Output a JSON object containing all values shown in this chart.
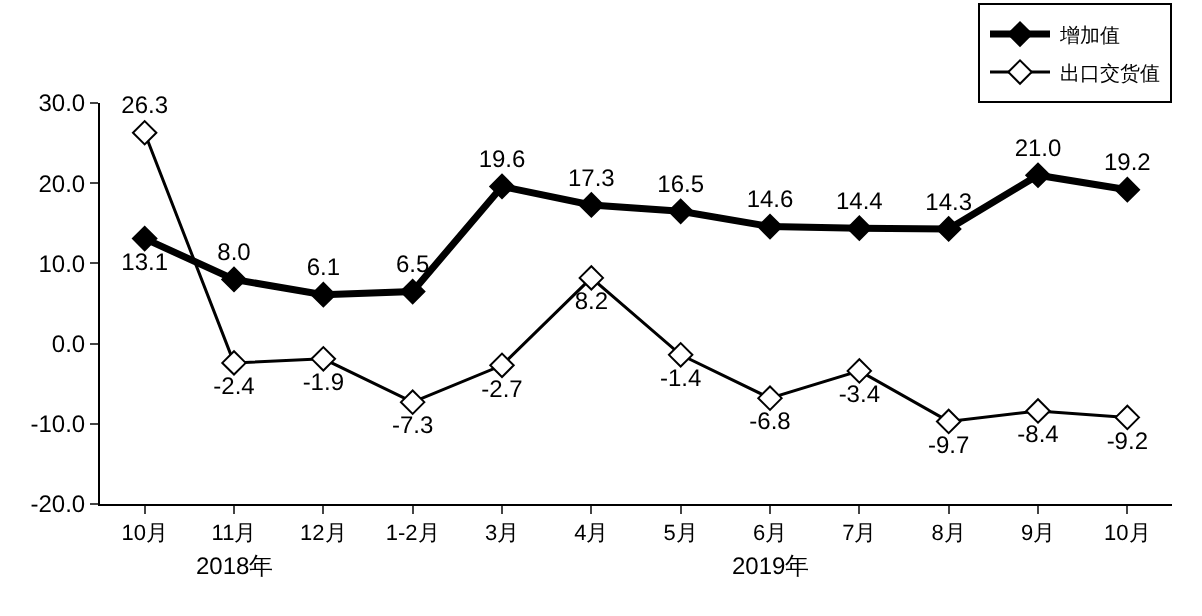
{
  "chart_data": {
    "type": "line",
    "categories": [
      "10月",
      "11月",
      "12月",
      "1-2月",
      "3月",
      "4月",
      "5月",
      "6月",
      "7月",
      "8月",
      "9月",
      "10月"
    ],
    "series": [
      {
        "name": "增加值",
        "color": "#000000",
        "values": [
          13.1,
          8.0,
          6.1,
          6.5,
          19.6,
          17.3,
          16.5,
          14.6,
          14.4,
          14.3,
          21.0,
          19.2
        ],
        "value_labels": [
          "13.1",
          "8.0",
          "6.1",
          "6.5",
          "19.6",
          "17.3",
          "16.5",
          "14.6",
          "14.4",
          "14.3",
          "21.0",
          "19.2"
        ]
      },
      {
        "name": "出口交货值",
        "color": "#000000",
        "values": [
          26.3,
          -2.4,
          -1.9,
          -7.3,
          -2.7,
          8.2,
          -1.4,
          -6.8,
          -3.4,
          -9.7,
          -8.4,
          -9.2
        ],
        "value_labels": [
          "26.3",
          "-2.4",
          "-1.9",
          "-7.3",
          "-2.7",
          "8.2",
          "-1.4",
          "-6.8",
          "-3.4",
          "-9.7",
          "-8.4",
          "-9.2"
        ]
      }
    ],
    "ylim": [
      -20,
      30
    ],
    "yticks": [
      {
        "value": -20,
        "label": "-20.0"
      },
      {
        "value": -10,
        "label": "-10.0"
      },
      {
        "value": 0,
        "label": "0.0"
      },
      {
        "value": 10,
        "label": "10.0"
      },
      {
        "value": 20,
        "label": "20.0"
      },
      {
        "value": 30,
        "label": "30.0"
      }
    ],
    "annotations": [
      "2018年",
      "2019年"
    ],
    "legend": "top right",
    "grid": false,
    "marker": "diamond",
    "line_style": "solid"
  }
}
